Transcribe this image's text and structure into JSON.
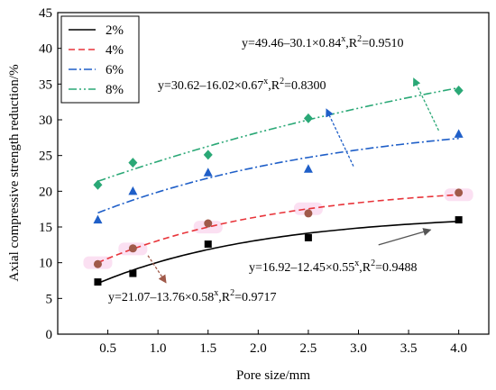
{
  "chart_data": {
    "type": "scatter",
    "xlabel": "Pore size/mm",
    "ylabel": "Axial compressive strength reduction/%",
    "xlim": [
      0,
      4.3
    ],
    "ylim": [
      0,
      45
    ],
    "xticks": [
      "0.5",
      "1.0",
      "1.5",
      "2.0",
      "2.5",
      "3.0",
      "3.5",
      "4.0"
    ],
    "yticks": [
      "0",
      "5",
      "10",
      "15",
      "20",
      "25",
      "30",
      "35",
      "40",
      "45"
    ],
    "grid": false,
    "legend_position": "top-left",
    "series": [
      {
        "name": "2%",
        "color": "#000000",
        "marker": "square",
        "dash": "solid",
        "x": [
          0.4,
          0.75,
          1.5,
          2.5,
          4.0
        ],
        "y": [
          7.3,
          8.5,
          12.6,
          13.5,
          16.0
        ],
        "fit": {
          "a": 16.92,
          "b": 12.45,
          "c": 0.55
        },
        "equation": "y=16.92–12.45×0.55x,R2=0.9488"
      },
      {
        "name": "4%",
        "color": "#e8343a",
        "marker": "circle",
        "dash": "dashed",
        "x": [
          0.4,
          0.75,
          1.5,
          2.5,
          4.0
        ],
        "y": [
          9.8,
          12.0,
          15.5,
          16.9,
          19.8
        ],
        "fit": {
          "a": 21.07,
          "b": 13.76,
          "c": 0.58
        },
        "equation": "y=21.07–13.76×0.58x,R2=0.9717"
      },
      {
        "name": "6%",
        "color": "#1f5fc8",
        "marker": "triangle",
        "dash": "dashdot",
        "x": [
          0.4,
          0.75,
          1.5,
          2.5,
          4.0
        ],
        "y": [
          16.0,
          20.0,
          22.6,
          23.1,
          28.0
        ],
        "fit": {
          "a": 30.62,
          "b": 16.02,
          "c": 0.67
        },
        "equation": "y=30.62–16.02×0.67x,R2=0.8300"
      },
      {
        "name": "8%",
        "color": "#2aa876",
        "marker": "diamond",
        "dash": "dashdotdot",
        "x": [
          0.4,
          0.75,
          1.5,
          2.5,
          4.0
        ],
        "y": [
          20.9,
          24.0,
          25.1,
          30.2,
          34.1
        ],
        "fit": {
          "a": 49.46,
          "b": 30.1,
          "c": 0.84
        },
        "equation": "y=49.46–30.1×0.84x,R2=0.9510"
      }
    ]
  },
  "annotations": [
    {
      "series": 3,
      "text_main": "y=49.46–30.1×0.84",
      "sup1": "x",
      "text_mid": ",R",
      "sup2": "2",
      "text_end": "=0.9510"
    },
    {
      "series": 2,
      "text_main": "y=30.62–16.02×0.67",
      "sup1": "x",
      "text_mid": ",R",
      "sup2": "2",
      "text_end": "=0.8300"
    },
    {
      "series": 0,
      "text_main": "y=16.92–12.45×0.55",
      "sup1": "x",
      "text_mid": ",R",
      "sup2": "2",
      "text_end": "=0.9488"
    },
    {
      "series": 1,
      "text_main": "y=21.07–13.76×0.58",
      "sup1": "x",
      "text_mid": ",R",
      "sup2": "2",
      "text_end": "=0.9717"
    }
  ]
}
